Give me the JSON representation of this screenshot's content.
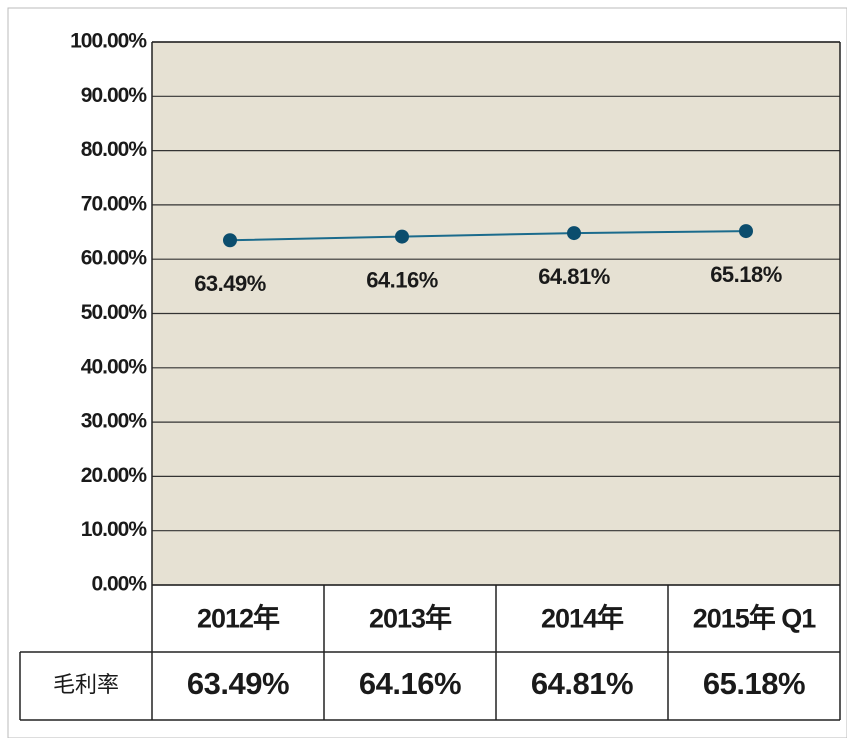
{
  "chart_data": {
    "type": "line",
    "categories": [
      "2012年",
      "2013年",
      "2014年",
      "2015年 Q1"
    ],
    "series": [
      {
        "name": null,
        "color": "#1b6b8c",
        "marker_color": "#0b4d6d",
        "values": [
          63.49,
          64.16,
          64.81,
          65.18
        ],
        "value_labels": [
          "63.49%",
          "64.16%",
          "64.81%",
          "65.18%"
        ]
      }
    ],
    "row_label": "毛利率",
    "ylim": [
      0,
      100
    ],
    "yticks": [
      {
        "value": 0,
        "label": "0.00%"
      },
      {
        "value": 10,
        "label": "10.00%"
      },
      {
        "value": 20,
        "label": "20.00%"
      },
      {
        "value": 30,
        "label": "30.00%"
      },
      {
        "value": 40,
        "label": "40.00%"
      },
      {
        "value": 50,
        "label": "50.00%"
      },
      {
        "value": 60,
        "label": "60.00%"
      },
      {
        "value": 70,
        "label": "70.00%"
      },
      {
        "value": 80,
        "label": "80.00%"
      },
      {
        "value": 90,
        "label": "90.00%"
      },
      {
        "value": 100,
        "label": "100.00%"
      }
    ],
    "grid": true,
    "plot_background": "#e6e1d3"
  }
}
